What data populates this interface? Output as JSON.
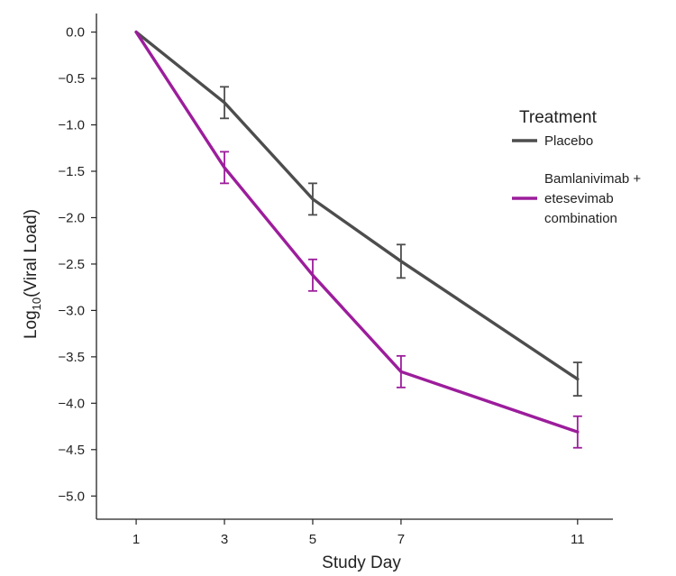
{
  "chart_data": {
    "type": "line",
    "title": "",
    "xlabel": "Study Day",
    "ylabel": {
      "base": "Log",
      "subscript": "10",
      "rest": "(Viral Load)"
    },
    "x": [
      1,
      3,
      5,
      7,
      11
    ],
    "x_tick_labels": [
      "1",
      "3",
      "5",
      "7",
      "11"
    ],
    "xlim": [
      0.1,
      11.8
    ],
    "y_ticks": [
      0.0,
      -0.5,
      -1.0,
      -1.5,
      -2.0,
      -2.5,
      -3.0,
      -3.5,
      -4.0,
      -4.5,
      -5.0
    ],
    "y_tick_labels": [
      "0.0",
      "−0.5",
      "−1.0",
      "−1.5",
      "−2.0",
      "−2.5",
      "−3.0",
      "−3.5",
      "−4.0",
      "−4.5",
      "−5.0"
    ],
    "ylim": [
      -5.25,
      0.2
    ],
    "grid": false,
    "legend": {
      "title": "Treatment",
      "position": "right"
    },
    "series": [
      {
        "name": "Placebo",
        "name_lines": [
          "Placebo"
        ],
        "color": "#4d4d4d",
        "values": [
          0.0,
          -0.76,
          -1.8,
          -2.47,
          -3.74
        ],
        "error_low": [
          0.0,
          -0.93,
          -1.97,
          -2.65,
          -3.92
        ],
        "error_high": [
          0.0,
          -0.59,
          -1.63,
          -2.29,
          -3.56
        ]
      },
      {
        "name": "Bamlanivimab + etesevimab combination",
        "name_lines": [
          "Bamlanivimab +",
          "etesevimab",
          "combination"
        ],
        "color": "#9c1d9c",
        "values": [
          0.0,
          -1.46,
          -2.62,
          -3.66,
          -4.31
        ],
        "error_low": [
          0.0,
          -1.63,
          -2.79,
          -3.83,
          -4.48
        ],
        "error_high": [
          0.0,
          -1.29,
          -2.45,
          -3.49,
          -4.14
        ]
      }
    ]
  }
}
